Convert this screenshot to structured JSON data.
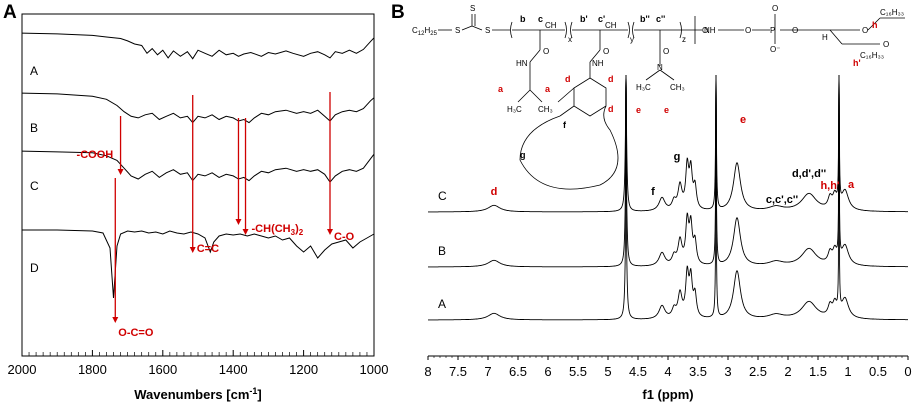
{
  "chart_data": [
    {
      "panel": "A",
      "type": "line",
      "xlabel": "Wavenumbers [cm⁻¹]",
      "xlabel_main": "Wavenumbers [cm",
      "xlabel_sup": "-1",
      "xlabel_end": "]",
      "xlim": [
        2000,
        1000
      ],
      "x_reversed": true,
      "xticks": [
        "2000",
        "1800",
        "1600",
        "1400",
        "1200",
        "1000"
      ],
      "series": [
        {
          "name": "A",
          "x": [
            2000,
            1900,
            1800,
            1760,
            1720,
            1700,
            1680,
            1660,
            1645,
            1630,
            1615,
            1600,
            1585,
            1570,
            1550,
            1530,
            1515,
            1500,
            1480,
            1460,
            1440,
            1420,
            1400,
            1385,
            1370,
            1350,
            1320,
            1300,
            1280,
            1250,
            1230,
            1200,
            1180,
            1160,
            1140,
            1125,
            1110,
            1090,
            1070,
            1050,
            1030,
            1010,
            1000
          ],
          "t": [
            0.96,
            0.95,
            0.93,
            0.91,
            0.89,
            0.86,
            0.82,
            0.8,
            0.7,
            0.76,
            0.68,
            0.74,
            0.64,
            0.73,
            0.66,
            0.72,
            0.63,
            0.74,
            0.7,
            0.66,
            0.74,
            0.68,
            0.7,
            0.66,
            0.69,
            0.71,
            0.66,
            0.71,
            0.69,
            0.73,
            0.7,
            0.66,
            0.7,
            0.72,
            0.68,
            0.64,
            0.72,
            0.7,
            0.74,
            0.7,
            0.75,
            0.85,
            0.9
          ]
        },
        {
          "name": "B",
          "x": [
            2000,
            1900,
            1800,
            1760,
            1730,
            1710,
            1690,
            1670,
            1650,
            1630,
            1610,
            1590,
            1570,
            1550,
            1530,
            1515,
            1500,
            1480,
            1460,
            1440,
            1420,
            1400,
            1385,
            1370,
            1355,
            1340,
            1320,
            1300,
            1280,
            1250,
            1220,
            1200,
            1180,
            1160,
            1140,
            1125,
            1110,
            1090,
            1070,
            1050,
            1030,
            1010,
            1000
          ],
          "t": [
            0.96,
            0.95,
            0.92,
            0.88,
            0.8,
            0.72,
            0.66,
            0.64,
            0.68,
            0.7,
            0.62,
            0.66,
            0.7,
            0.64,
            0.66,
            0.58,
            0.66,
            0.64,
            0.68,
            0.62,
            0.66,
            0.64,
            0.6,
            0.62,
            0.58,
            0.64,
            0.7,
            0.68,
            0.72,
            0.74,
            0.7,
            0.72,
            0.7,
            0.74,
            0.66,
            0.6,
            0.68,
            0.72,
            0.74,
            0.72,
            0.76,
            0.86,
            0.9
          ]
        },
        {
          "name": "C",
          "x": [
            2000,
            1900,
            1800,
            1760,
            1730,
            1710,
            1690,
            1670,
            1650,
            1630,
            1610,
            1590,
            1570,
            1550,
            1530,
            1515,
            1500,
            1480,
            1460,
            1440,
            1420,
            1400,
            1385,
            1370,
            1355,
            1340,
            1320,
            1300,
            1280,
            1250,
            1220,
            1200,
            1180,
            1160,
            1140,
            1125,
            1110,
            1090,
            1070,
            1050,
            1030,
            1010,
            1000
          ],
          "t": [
            0.96,
            0.95,
            0.94,
            0.9,
            0.84,
            0.74,
            0.64,
            0.6,
            0.66,
            0.7,
            0.62,
            0.68,
            0.72,
            0.66,
            0.68,
            0.58,
            0.66,
            0.64,
            0.68,
            0.62,
            0.66,
            0.64,
            0.6,
            0.62,
            0.58,
            0.64,
            0.7,
            0.68,
            0.72,
            0.74,
            0.7,
            0.72,
            0.7,
            0.72,
            0.66,
            0.56,
            0.64,
            0.7,
            0.72,
            0.7,
            0.74,
            0.86,
            0.92
          ]
        },
        {
          "name": "D",
          "x": [
            2000,
            1900,
            1800,
            1770,
            1750,
            1740,
            1730,
            1720,
            1700,
            1680,
            1660,
            1640,
            1620,
            1600,
            1580,
            1560,
            1540,
            1520,
            1500,
            1480,
            1465,
            1455,
            1440,
            1420,
            1400,
            1380,
            1360,
            1340,
            1320,
            1300,
            1280,
            1260,
            1240,
            1220,
            1200,
            1180,
            1160,
            1140,
            1120,
            1100,
            1080,
            1060,
            1040,
            1020,
            1000
          ],
          "t": [
            0.98,
            0.98,
            0.97,
            0.95,
            0.8,
            0.3,
            0.82,
            0.94,
            0.97,
            0.96,
            0.97,
            0.95,
            0.96,
            0.94,
            0.97,
            0.95,
            0.94,
            0.96,
            0.94,
            0.9,
            0.76,
            0.86,
            0.92,
            0.94,
            0.93,
            0.94,
            0.92,
            0.94,
            0.92,
            0.9,
            0.92,
            0.88,
            0.9,
            0.82,
            0.76,
            0.82,
            0.7,
            0.78,
            0.84,
            0.86,
            0.88,
            0.8,
            0.86,
            0.9,
            0.94
          ]
        }
      ],
      "trace_labels": [
        "A",
        "B",
        "C",
        "D"
      ],
      "annotations": [
        {
          "text": "-COOH",
          "x": 1720
        },
        {
          "text": "C=C",
          "x": 1515
        },
        {
          "text": "-CH(CH₃)₂",
          "text_main": "-CH(CH",
          "text_sub": "3",
          "text_end": ")",
          "text_sub2": "2",
          "x": 1385,
          "x2": 1365
        },
        {
          "text": "C-O",
          "x": 1125
        },
        {
          "text": "O-C=O",
          "x": 1735
        }
      ]
    },
    {
      "panel": "B",
      "type": "line",
      "xlabel": "f1 (ppm)",
      "xlim": [
        8,
        0
      ],
      "x_reversed": true,
      "xticks": [
        "8",
        "7.5",
        "7",
        "6.5",
        "6",
        "5.5",
        "5",
        "4.5",
        "4",
        "3.5",
        "3",
        "2.5",
        "2",
        "1.5",
        "1",
        "0.5",
        "0"
      ],
      "peaks": [
        {
          "ppm": 6.9,
          "h": 0.06,
          "w": 0.12
        },
        {
          "ppm": 4.7,
          "h": 1.0,
          "w": 0.015
        },
        {
          "ppm": 4.1,
          "h": 0.12,
          "w": 0.06
        },
        {
          "ppm": 3.9,
          "h": 0.08,
          "w": 0.04
        },
        {
          "ppm": 3.8,
          "h": 0.22,
          "w": 0.04
        },
        {
          "ppm": 3.68,
          "h": 0.38,
          "w": 0.03
        },
        {
          "ppm": 3.62,
          "h": 0.34,
          "w": 0.03
        },
        {
          "ppm": 3.55,
          "h": 0.2,
          "w": 0.03
        },
        {
          "ppm": 3.2,
          "h": 1.0,
          "w": 0.01
        },
        {
          "ppm": 2.85,
          "h": 0.44,
          "w": 0.07
        },
        {
          "ppm": 2.2,
          "h": 0.04,
          "w": 0.15
        },
        {
          "ppm": 1.65,
          "h": 0.16,
          "w": 0.15
        },
        {
          "ppm": 1.3,
          "h": 0.1,
          "w": 0.04
        },
        {
          "ppm": 1.22,
          "h": 0.12,
          "w": 0.04
        },
        {
          "ppm": 1.15,
          "h": 1.0,
          "w": 0.008
        },
        {
          "ppm": 1.05,
          "h": 0.18,
          "w": 0.07
        }
      ],
      "trace_labels": [
        "C",
        "B",
        "A"
      ],
      "peak_labels": [
        {
          "text": "d",
          "ppm": 6.9,
          "color": "#d00000"
        },
        {
          "text": "f",
          "ppm": 4.25,
          "color": "#000000"
        },
        {
          "text": "g",
          "ppm": 3.85,
          "color": "#000000"
        },
        {
          "text": "e",
          "ppm": 2.75,
          "color": "#d00000"
        },
        {
          "text": "c,c',c''",
          "ppm": 2.1,
          "color": "#000000"
        },
        {
          "text": "d,d',d''",
          "ppm": 1.65,
          "color": "#000000"
        },
        {
          "text": "h,h'",
          "ppm": 1.3,
          "color": "#d00000"
        },
        {
          "text": "a",
          "ppm": 0.95,
          "color": "#d00000"
        }
      ]
    }
  ],
  "panel_letters": {
    "a": "A",
    "b": "B"
  },
  "structure": {
    "chain_end": "C₁₂H₂₅",
    "chain_end_main": "C",
    "chain_end_sub1": "12",
    "chain_end_h": "H",
    "chain_end_sub2": "25",
    "s_atoms": [
      "S",
      "S",
      "S"
    ],
    "monomer_labels": [
      "b",
      "c",
      "b'",
      "c'",
      "b''",
      "c''"
    ],
    "subscripts": [
      "x",
      "y",
      "z"
    ],
    "ch": "CH",
    "ch2": "CH₂",
    "o": "O",
    "n": "N",
    "nh": "NH",
    "hn": "HN",
    "p": "P",
    "o_minus": "O⁻",
    "h": "H",
    "h3c": "H₃C",
    "ch3": "CH₃",
    "c16h33": "C₁₆H₃₃",
    "red_labels": [
      "a",
      "a",
      "d",
      "d",
      "d",
      "e",
      "e",
      "h",
      "h'"
    ],
    "black_labels": [
      "f",
      "g"
    ]
  }
}
